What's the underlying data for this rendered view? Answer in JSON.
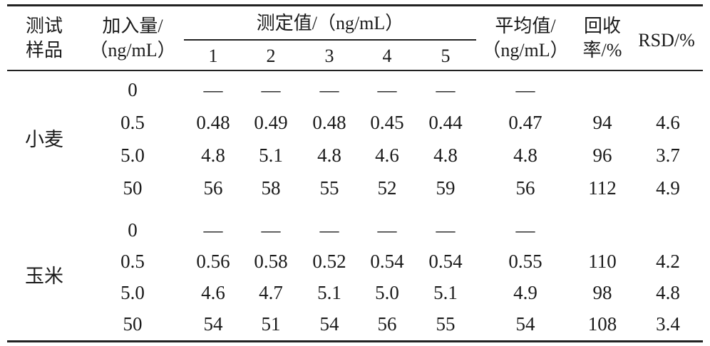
{
  "header": {
    "sample_line1": "测试",
    "sample_line2": "样品",
    "added_line1": "加入量/",
    "added_line2": "（ng/mL）",
    "measured": "测定值/（ng/mL）",
    "replicates": [
      "1",
      "2",
      "3",
      "4",
      "5"
    ],
    "avg_line1": "平均值/",
    "avg_line2": "（ng/mL）",
    "recovery_line1": "回收",
    "recovery_line2": "率/%",
    "rsd": "RSD/%"
  },
  "groups": [
    {
      "sample": "小麦",
      "rows": [
        {
          "added": "0",
          "values": [
            "—",
            "—",
            "—",
            "—",
            "—"
          ],
          "avg": "—",
          "recovery": "",
          "rsd": ""
        },
        {
          "added": "0.5",
          "values": [
            "0.48",
            "0.49",
            "0.48",
            "0.45",
            "0.44"
          ],
          "avg": "0.47",
          "recovery": "94",
          "rsd": "4.6"
        },
        {
          "added": "5.0",
          "values": [
            "4.8",
            "5.1",
            "4.8",
            "4.6",
            "4.8"
          ],
          "avg": "4.8",
          "recovery": "96",
          "rsd": "3.7"
        },
        {
          "added": "50",
          "values": [
            "56",
            "58",
            "55",
            "52",
            "59"
          ],
          "avg": "56",
          "recovery": "112",
          "rsd": "4.9"
        }
      ]
    },
    {
      "sample": "玉米",
      "rows": [
        {
          "added": "0",
          "values": [
            "—",
            "—",
            "—",
            "—",
            "—"
          ],
          "avg": "—",
          "recovery": "",
          "rsd": ""
        },
        {
          "added": "0.5",
          "values": [
            "0.56",
            "0.58",
            "0.52",
            "0.54",
            "0.54"
          ],
          "avg": "0.55",
          "recovery": "110",
          "rsd": "4.2"
        },
        {
          "added": "5.0",
          "values": [
            "4.6",
            "4.7",
            "5.1",
            "5.0",
            "5.1"
          ],
          "avg": "4.9",
          "recovery": "98",
          "rsd": "4.8"
        },
        {
          "added": "50",
          "values": [
            "54",
            "51",
            "54",
            "56",
            "55"
          ],
          "avg": "54",
          "recovery": "108",
          "rsd": "3.4"
        }
      ]
    }
  ]
}
